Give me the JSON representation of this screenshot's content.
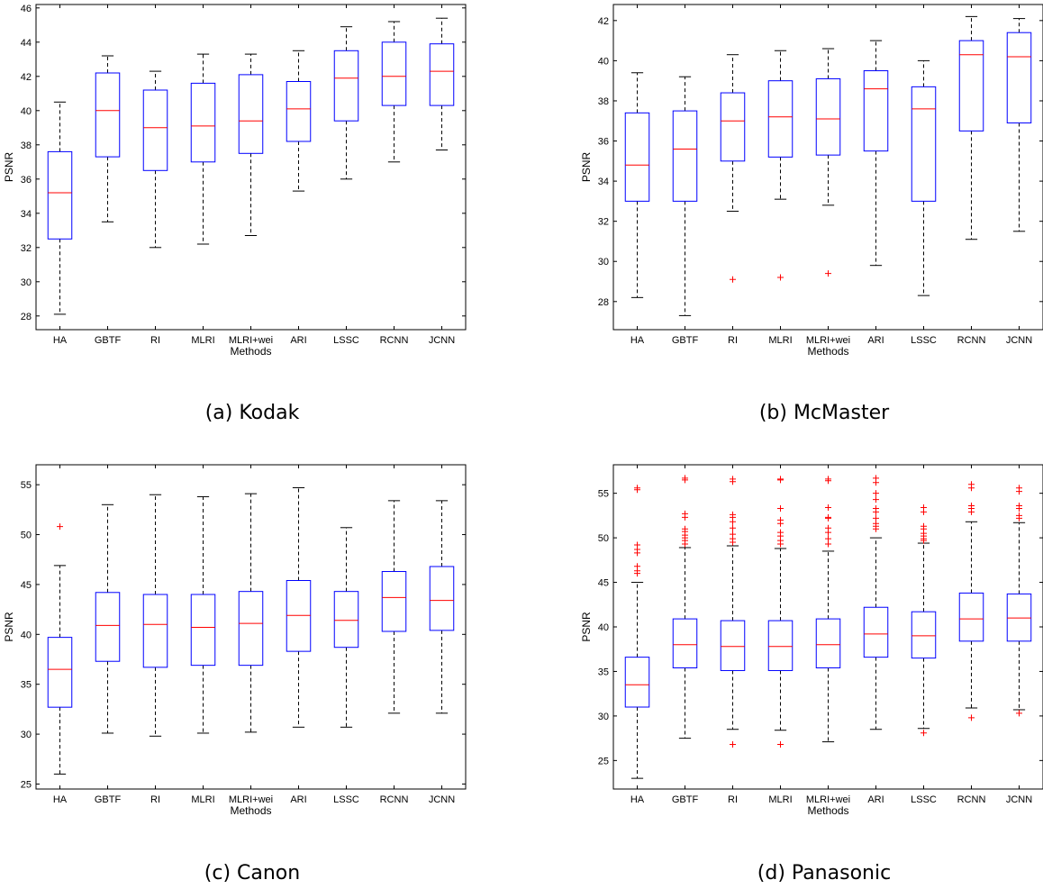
{
  "captions": [
    "(a) Kodak",
    "(b) McMaster",
    "(c) Canon",
    "(d) Panasonic"
  ],
  "colors": {
    "box": "#0000ff",
    "median": "#ff0000",
    "whisker": "#000000",
    "outlier": "#ff0000",
    "axes": "#000000"
  },
  "chart_data": [
    {
      "type": "box",
      "xlabel": "Methods",
      "ylabel": "PSNR",
      "categories": [
        "HA",
        "GBTF",
        "RI",
        "MLRI",
        "MLRI+wei",
        "ARI",
        "LSSC",
        "RCNN",
        "JCNN"
      ],
      "ylim": [
        27.2,
        46.2
      ],
      "yticks": [
        28,
        30,
        32,
        34,
        36,
        38,
        40,
        42,
        44,
        46
      ],
      "boxes": [
        {
          "whislo": 28.1,
          "q1": 32.5,
          "med": 35.2,
          "q3": 37.6,
          "whishi": 40.5,
          "fliers": []
        },
        {
          "whislo": 33.5,
          "q1": 37.3,
          "med": 40.0,
          "q3": 42.2,
          "whishi": 43.2,
          "fliers": []
        },
        {
          "whislo": 32.0,
          "q1": 36.5,
          "med": 39.0,
          "q3": 41.2,
          "whishi": 42.3,
          "fliers": []
        },
        {
          "whislo": 32.2,
          "q1": 37.0,
          "med": 39.1,
          "q3": 41.6,
          "whishi": 43.3,
          "fliers": []
        },
        {
          "whislo": 32.7,
          "q1": 37.5,
          "med": 39.4,
          "q3": 42.1,
          "whishi": 43.3,
          "fliers": []
        },
        {
          "whislo": 35.3,
          "q1": 38.2,
          "med": 40.1,
          "q3": 41.7,
          "whishi": 43.5,
          "fliers": []
        },
        {
          "whislo": 36.0,
          "q1": 39.4,
          "med": 41.9,
          "q3": 43.5,
          "whishi": 44.9,
          "fliers": []
        },
        {
          "whislo": 37.0,
          "q1": 40.3,
          "med": 42.0,
          "q3": 44.0,
          "whishi": 45.2,
          "fliers": []
        },
        {
          "whislo": 37.7,
          "q1": 40.3,
          "med": 42.3,
          "q3": 43.9,
          "whishi": 45.4,
          "fliers": []
        }
      ]
    },
    {
      "type": "box",
      "xlabel": "Methods",
      "ylabel": "PSNR",
      "categories": [
        "HA",
        "GBTF",
        "RI",
        "MLRI",
        "MLRI+wei",
        "ARI",
        "LSSC",
        "RCNN",
        "JCNN"
      ],
      "ylim": [
        26.6,
        42.8
      ],
      "yticks": [
        28,
        30,
        32,
        34,
        36,
        38,
        40,
        42
      ],
      "boxes": [
        {
          "whislo": 28.2,
          "q1": 33.0,
          "med": 34.8,
          "q3": 37.4,
          "whishi": 39.4,
          "fliers": []
        },
        {
          "whislo": 27.3,
          "q1": 33.0,
          "med": 35.6,
          "q3": 37.5,
          "whishi": 39.2,
          "fliers": []
        },
        {
          "whislo": 32.5,
          "q1": 35.0,
          "med": 37.0,
          "q3": 38.4,
          "whishi": 40.3,
          "fliers": [
            29.1
          ]
        },
        {
          "whislo": 33.1,
          "q1": 35.2,
          "med": 37.2,
          "q3": 39.0,
          "whishi": 40.5,
          "fliers": [
            29.2
          ]
        },
        {
          "whislo": 32.8,
          "q1": 35.3,
          "med": 37.1,
          "q3": 39.1,
          "whishi": 40.6,
          "fliers": [
            29.4
          ]
        },
        {
          "whislo": 29.8,
          "q1": 35.5,
          "med": 38.6,
          "q3": 39.5,
          "whishi": 41.0,
          "fliers": []
        },
        {
          "whislo": 28.3,
          "q1": 33.0,
          "med": 37.6,
          "q3": 38.7,
          "whishi": 40.0,
          "fliers": []
        },
        {
          "whislo": 31.1,
          "q1": 36.5,
          "med": 40.3,
          "q3": 41.0,
          "whishi": 42.2,
          "fliers": []
        },
        {
          "whislo": 31.5,
          "q1": 36.9,
          "med": 40.2,
          "q3": 41.4,
          "whishi": 42.1,
          "fliers": []
        }
      ]
    },
    {
      "type": "box",
      "xlabel": "Methods",
      "ylabel": "PSNR",
      "categories": [
        "HA",
        "GBTF",
        "RI",
        "MLRI",
        "MLRI+wei",
        "ARI",
        "LSSC",
        "RCNN",
        "JCNN"
      ],
      "ylim": [
        24.5,
        57.0
      ],
      "yticks": [
        25,
        30,
        35,
        40,
        45,
        50,
        55
      ],
      "boxes": [
        {
          "whislo": 26.0,
          "q1": 32.7,
          "med": 36.5,
          "q3": 39.7,
          "whishi": 46.9,
          "fliers": [
            50.8
          ]
        },
        {
          "whislo": 30.1,
          "q1": 37.3,
          "med": 40.9,
          "q3": 44.2,
          "whishi": 53.0,
          "fliers": []
        },
        {
          "whislo": 29.8,
          "q1": 36.7,
          "med": 41.0,
          "q3": 44.0,
          "whishi": 54.0,
          "fliers": []
        },
        {
          "whislo": 30.1,
          "q1": 36.9,
          "med": 40.7,
          "q3": 44.0,
          "whishi": 53.8,
          "fliers": []
        },
        {
          "whislo": 30.2,
          "q1": 36.9,
          "med": 41.1,
          "q3": 44.3,
          "whishi": 54.1,
          "fliers": []
        },
        {
          "whislo": 30.7,
          "q1": 38.3,
          "med": 41.9,
          "q3": 45.4,
          "whishi": 54.7,
          "fliers": []
        },
        {
          "whislo": 30.7,
          "q1": 38.7,
          "med": 41.4,
          "q3": 44.3,
          "whishi": 50.7,
          "fliers": []
        },
        {
          "whislo": 32.1,
          "q1": 40.3,
          "med": 43.7,
          "q3": 46.3,
          "whishi": 53.4,
          "fliers": []
        },
        {
          "whislo": 32.1,
          "q1": 40.4,
          "med": 43.4,
          "q3": 46.8,
          "whishi": 53.4,
          "fliers": []
        }
      ]
    },
    {
      "type": "box",
      "xlabel": "Methods",
      "ylabel": "PSNR",
      "categories": [
        "HA",
        "GBTF",
        "RI",
        "MLRI",
        "MLRI+wei",
        "ARI",
        "LSSC",
        "RCNN",
        "JCNN"
      ],
      "ylim": [
        21.8,
        58.2
      ],
      "yticks": [
        25,
        30,
        35,
        40,
        45,
        50,
        55
      ],
      "boxes": [
        {
          "whislo": 23.0,
          "q1": 31.0,
          "med": 33.5,
          "q3": 36.6,
          "whishi": 45.0,
          "fliers": [
            46.0,
            46.3,
            46.8,
            48.3,
            48.7,
            49.2,
            55.4,
            55.6
          ]
        },
        {
          "whislo": 27.5,
          "q1": 35.4,
          "med": 38.0,
          "q3": 40.9,
          "whishi": 48.9,
          "fliers": [
            49.3,
            49.7,
            50.0,
            50.3,
            50.7,
            51.0,
            52.3,
            52.7,
            56.5,
            56.7
          ]
        },
        {
          "whislo": 28.5,
          "q1": 35.1,
          "med": 37.8,
          "q3": 40.7,
          "whishi": 49.1,
          "fliers": [
            26.8,
            49.5,
            49.9,
            50.4,
            51.1,
            51.8,
            52.3,
            52.6,
            56.3,
            56.6
          ]
        },
        {
          "whislo": 28.4,
          "q1": 35.1,
          "med": 37.8,
          "q3": 40.7,
          "whishi": 48.8,
          "fliers": [
            26.8,
            49.3,
            49.7,
            50.2,
            50.6,
            51.6,
            52.0,
            53.3,
            56.5,
            56.6
          ]
        },
        {
          "whislo": 27.1,
          "q1": 35.4,
          "med": 38.0,
          "q3": 40.9,
          "whishi": 48.5,
          "fliers": [
            49.3,
            49.9,
            50.6,
            51.1,
            52.2,
            52.3,
            53.4,
            56.4,
            56.6
          ]
        },
        {
          "whislo": 28.5,
          "q1": 36.6,
          "med": 39.2,
          "q3": 42.2,
          "whishi": 50.0,
          "fliers": [
            51.0,
            51.3,
            51.6,
            52.2,
            52.9,
            53.3,
            54.3,
            55.0,
            56.2,
            56.7
          ]
        },
        {
          "whislo": 28.6,
          "q1": 36.5,
          "med": 39.0,
          "q3": 41.7,
          "whishi": 49.4,
          "fliers": [
            28.1,
            49.7,
            49.9,
            50.2,
            50.5,
            51.0,
            51.3,
            52.9,
            53.4
          ]
        },
        {
          "whislo": 30.9,
          "q1": 38.4,
          "med": 40.9,
          "q3": 43.8,
          "whishi": 51.8,
          "fliers": [
            29.8,
            52.9,
            53.3,
            53.6,
            55.6,
            56.0
          ]
        },
        {
          "whislo": 30.7,
          "q1": 38.4,
          "med": 41.0,
          "q3": 43.7,
          "whishi": 51.7,
          "fliers": [
            30.3,
            52.2,
            52.5,
            53.3,
            53.6,
            55.2,
            55.6
          ]
        }
      ]
    }
  ]
}
